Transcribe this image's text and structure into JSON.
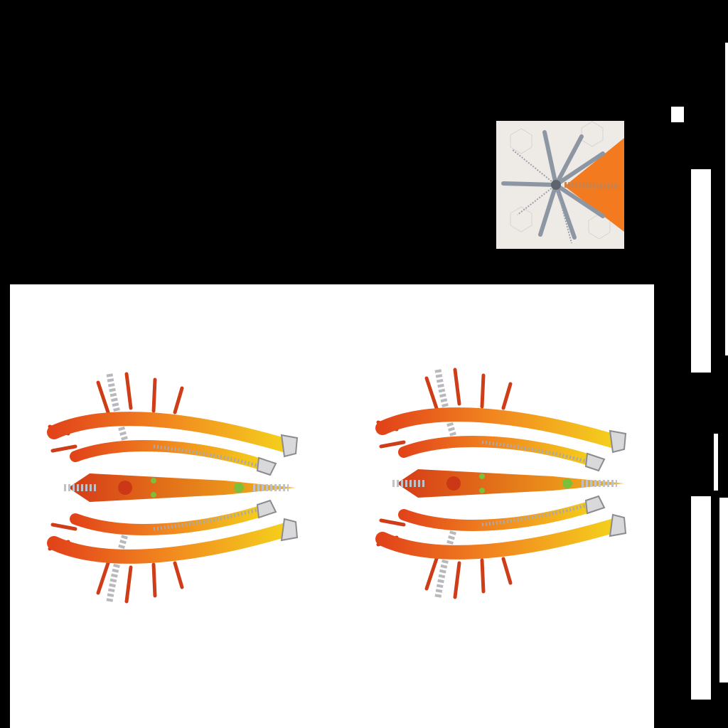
{
  "scene": {
    "background_color": "#000000",
    "panel_color": "#ffffff",
    "thumbnail": {
      "icon": "radial-spike-structure-icon",
      "accent_color": "#f37a1f",
      "part_color": "#8d96a3"
    },
    "renders": [
      {
        "icon": "spiked-biomechanical-craft-icon",
        "view": "top",
        "primary_color": "#e85a1a",
        "secondary_color": "#f2c81b"
      },
      {
        "icon": "spiked-biomechanical-craft-icon",
        "view": "top",
        "primary_color": "#e85a1a",
        "secondary_color": "#f2c81b"
      }
    ]
  }
}
